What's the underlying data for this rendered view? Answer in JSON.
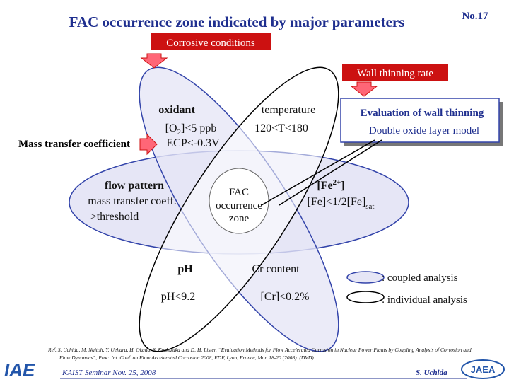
{
  "header": {
    "title": "FAC occurrence zone indicated by major parameters",
    "number": "No.17"
  },
  "labels": {
    "corrosive": "Corrosive conditions",
    "wall_thinning": "Wall thinning rate",
    "mass_transfer": "Mass transfer coefficient"
  },
  "evaluation": {
    "title": "Evaluation of wall thinning",
    "model": "Double oxide layer model"
  },
  "petals": {
    "oxidant": {
      "name": "oxidant",
      "cond1_pre": "[O",
      "cond1_sub": "2",
      "cond1_post": "]<5 ppb",
      "cond2": "ECP<-0.3V"
    },
    "temperature": {
      "name": "temperature",
      "cond": "120<T<180"
    },
    "flow": {
      "name": "flow pattern",
      "cond1": "mass transfer coeff.",
      "cond2": ">threshold"
    },
    "iron": {
      "name_pre": "[Fe",
      "name_sup": "2+",
      "name_post": "]",
      "cond_pre": "[Fe]<1/2[Fe]",
      "cond_sub": "sat"
    },
    "ph": {
      "name": "pH",
      "cond": "pH<9.2"
    },
    "chromium": {
      "name": "Cr content",
      "cond": "[Cr]<0.2%"
    }
  },
  "center": {
    "line1": "FAC",
    "line2": "occurrence",
    "line3": "zone"
  },
  "legend": {
    "coupled": ": coupled analysis",
    "individual": ": individual analysis"
  },
  "reference": {
    "line1": "Ref. S. Uchida, M. Naitoh, Y. Uehara, H. Okada, S. Koshizuka and D. H. Lister, “Evaluation Methods for Flow Accelerated Corrosion in Nuclear Power Plants by Coupling Analysis of Corrosion and",
    "line2": "Flow Dynamics”, Proc. Int. Conf. on Flow Accelerated Corrosion 2008, EDF, Lyon, France, Mar. 18-20 (2008). (DVD)"
  },
  "footer": {
    "event": "KAIST Seminar  Nov. 25, 2008",
    "author": "S. Uchida",
    "logo_left": "IAE",
    "logo_right": "JAEA"
  }
}
